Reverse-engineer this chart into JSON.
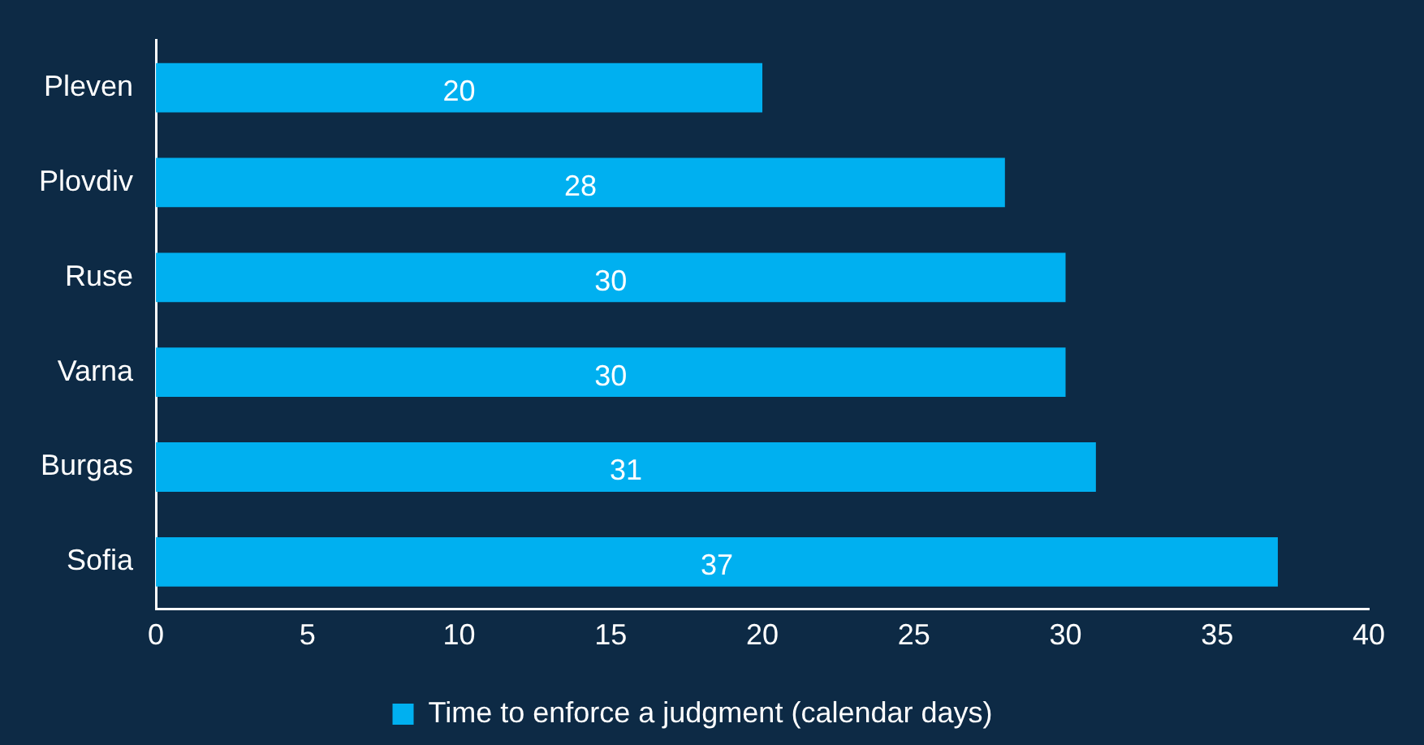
{
  "chart_data": {
    "type": "bar",
    "orientation": "horizontal",
    "categories": [
      "Pleven",
      "Plovdiv",
      "Ruse",
      "Varna",
      "Burgas",
      "Sofia"
    ],
    "series": [
      {
        "name": "Time to enforce a judgment (calendar days)",
        "color": "#00b0f0",
        "values": [
          20,
          28,
          30,
          30,
          31,
          37
        ]
      }
    ],
    "xlim": [
      0,
      40
    ],
    "xticks": [
      0,
      5,
      10,
      15,
      20,
      25,
      30,
      35,
      40
    ],
    "grid": false,
    "legend": "bottom",
    "data_labels": true
  }
}
